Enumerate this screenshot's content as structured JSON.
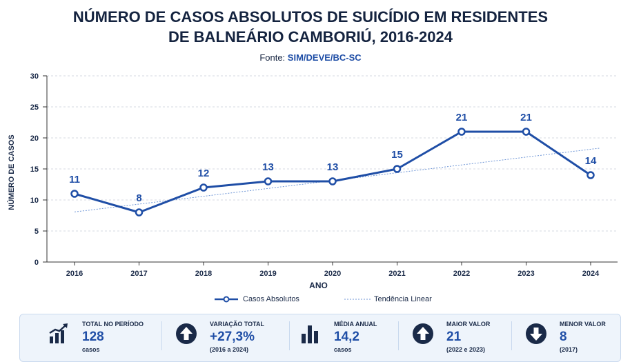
{
  "title_line1": "NÚMERO DE CASOS ABSOLUTOS DE SUICÍDIO EM RESIDENTES",
  "title_line2": "DE BALNEÁRIO CAMBORIÚ, 2016-2024",
  "source_prefix": "Fonte: ",
  "source_name": "SIM/DEVE/BC-SC",
  "chart_data": {
    "type": "line",
    "title": "NÚMERO DE CASOS ABSOLUTOS DE SUICÍDIO EM RESIDENTES DE BALNEÁRIO CAMBORIÚ, 2016-2024",
    "xlabel": "ANO",
    "ylabel": "NÚMERO DE CASOS",
    "categories": [
      "2016",
      "2017",
      "2018",
      "2019",
      "2020",
      "2021",
      "2022",
      "2023",
      "2024"
    ],
    "series": [
      {
        "name": "Casos Absolutos",
        "values": [
          11,
          8,
          12,
          13,
          13,
          15,
          21,
          21,
          14
        ]
      },
      {
        "name": "Tendência Linear",
        "values": [
          8.07,
          9.33,
          10.6,
          11.86,
          13.12,
          14.38,
          15.64,
          16.91,
          18.17
        ]
      }
    ],
    "ylim": [
      0,
      30
    ],
    "yticks": [
      0,
      5,
      10,
      15,
      20,
      25,
      30
    ],
    "grid": true,
    "legend": "bottom",
    "colors": {
      "primary": "#1f4ea6",
      "trend": "#6f96d6",
      "grid": "#d4d9e2"
    }
  },
  "summary": [
    {
      "icon": "bar-growth-icon",
      "label": "TOTAL NO PERÍODO",
      "value": "128",
      "sub": "casos"
    },
    {
      "icon": "arrow-up-circle-icon",
      "label": "VARIAÇÃO TOTAL",
      "value": "+27,3%",
      "sub": "(2016 a 2024)"
    },
    {
      "icon": "bar-chart-icon",
      "label": "MÉDIA ANUAL",
      "value": "14,2",
      "sub": "casos"
    },
    {
      "icon": "arrow-up-circle-icon",
      "label": "MAIOR VALOR",
      "value": "21",
      "sub": "(2022 e 2023)"
    },
    {
      "icon": "arrow-down-circle-icon",
      "label": "MENOR VALOR",
      "value": "8",
      "sub": "(2017)"
    }
  ]
}
